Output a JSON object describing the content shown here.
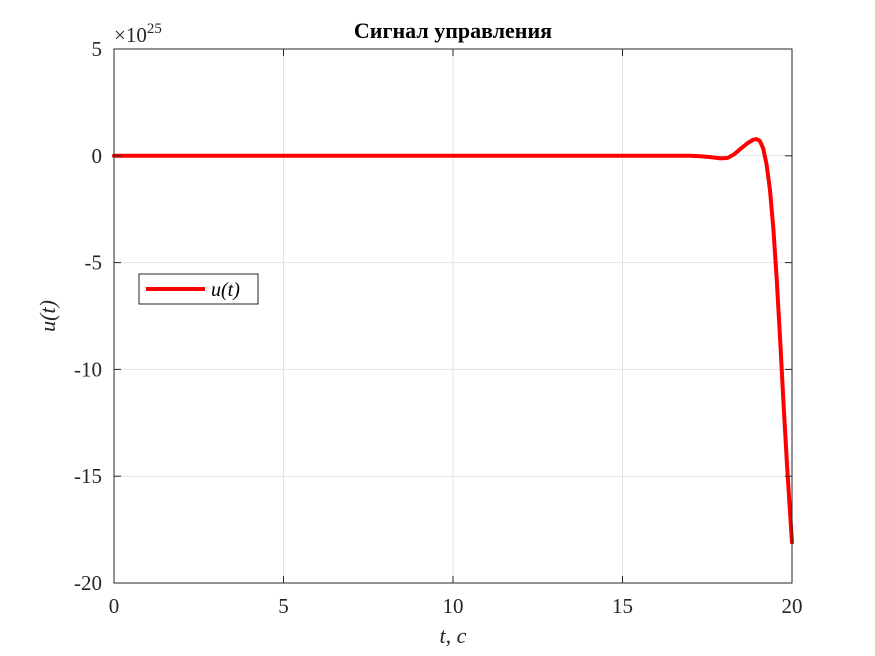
{
  "chart_data": {
    "type": "line",
    "title": "Сигнал управления",
    "xlabel": "t, c",
    "ylabel": "u(t)",
    "exponent_label": "×10",
    "exponent_power": "25",
    "xlim": [
      0,
      20
    ],
    "ylim": [
      -20,
      5
    ],
    "xticks": [
      0,
      5,
      10,
      15,
      20
    ],
    "xtick_labels": [
      "0",
      "5",
      "10",
      "15",
      "20"
    ],
    "yticks": [
      -20,
      -15,
      -10,
      -5,
      0,
      5
    ],
    "ytick_labels": [
      "-20",
      "-15",
      "-10",
      "-5",
      "0",
      "5"
    ],
    "grid": true,
    "legend_position": "left",
    "colors": {
      "series": "#ff0000",
      "grid": "#e3e3e3",
      "axes": "#262626"
    },
    "series": [
      {
        "name": "u(t)",
        "x": [
          0,
          2,
          4,
          6,
          8,
          10,
          12,
          14,
          16,
          17,
          17.3,
          17.6,
          17.9,
          18.1,
          18.3,
          18.5,
          18.7,
          18.85,
          18.95,
          19.05,
          19.15,
          19.25,
          19.35,
          19.45,
          19.55,
          19.65,
          19.75,
          19.85,
          19.95,
          20
        ],
        "y": [
          0,
          0,
          0,
          0,
          0,
          0,
          0,
          0,
          0,
          0,
          -0.02,
          -0.06,
          -0.12,
          -0.1,
          0.08,
          0.35,
          0.6,
          0.75,
          0.78,
          0.7,
          0.35,
          -0.4,
          -1.6,
          -3.4,
          -5.8,
          -8.6,
          -11.6,
          -14.4,
          -16.9,
          -18.1
        ]
      }
    ]
  }
}
